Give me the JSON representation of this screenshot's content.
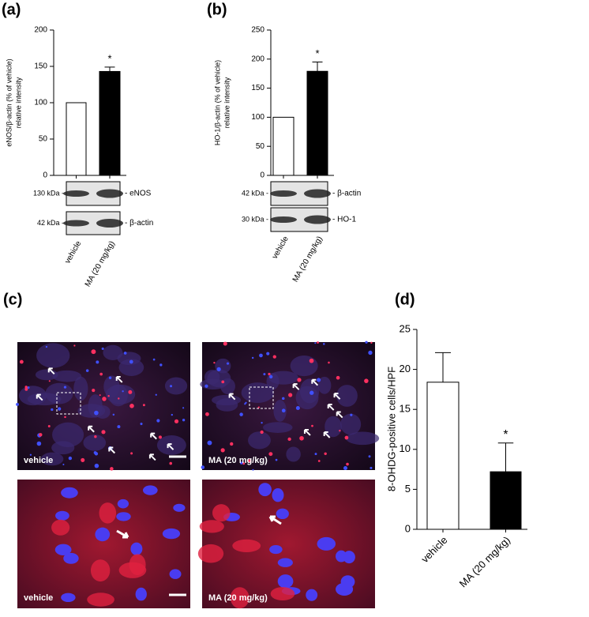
{
  "panel_labels": [
    "(a)",
    "(b)",
    "(c)",
    "(d)"
  ],
  "chart_data": [
    {
      "type": "bar",
      "y_label": [
        "eNOS/β-actin (% of vehicle)",
        "relative intensity"
      ],
      "categories": [
        "vehicle",
        "MA (20 mg/kg)"
      ],
      "values": [
        100,
        143
      ],
      "errors": [
        0,
        6
      ],
      "annotations": [
        null,
        "*"
      ],
      "colors": [
        "#ffffff",
        "#000000"
      ],
      "ylim": [
        0,
        200
      ],
      "yticks": [
        0,
        50,
        100,
        150,
        200
      ],
      "blots": [
        {
          "size": "130 kDa -",
          "name": "- eNOS"
        },
        {
          "size": "42 kDa -",
          "name": "- β-actin"
        }
      ]
    },
    {
      "type": "bar",
      "y_label": [
        "HO-1/β-actin (% of vehicle)",
        "relative intensity"
      ],
      "categories": [
        "vehicle",
        "MA (20 mg/kg)"
      ],
      "values": [
        100,
        179
      ],
      "errors": [
        0,
        16
      ],
      "annotations": [
        null,
        "*"
      ],
      "colors": [
        "#ffffff",
        "#000000"
      ],
      "ylim": [
        0,
        250
      ],
      "yticks": [
        0,
        50,
        100,
        150,
        200,
        250
      ],
      "blots": [
        {
          "size": "42 kDa -",
          "name": "- β-actin"
        },
        {
          "size": "30 kDa -",
          "name": "- HO-1"
        }
      ]
    },
    {
      "type": "bar",
      "y_label": [
        "8-OHDG-positive cells/HPF"
      ],
      "categories": [
        "vehicle",
        "MA (20 mg/kg)"
      ],
      "values": [
        18.4,
        7.2
      ],
      "errors": [
        3.7,
        3.6
      ],
      "annotations": [
        null,
        "*"
      ],
      "colors": [
        "#ffffff",
        "#000000"
      ],
      "ylim": [
        0,
        25
      ],
      "yticks": [
        0,
        5,
        10,
        15,
        20,
        25
      ]
    }
  ],
  "micrographs": {
    "labels": [
      "vehicle",
      "MA (20 mg/kg)",
      "vehicle",
      "MA (20 mg/kg)"
    ]
  }
}
